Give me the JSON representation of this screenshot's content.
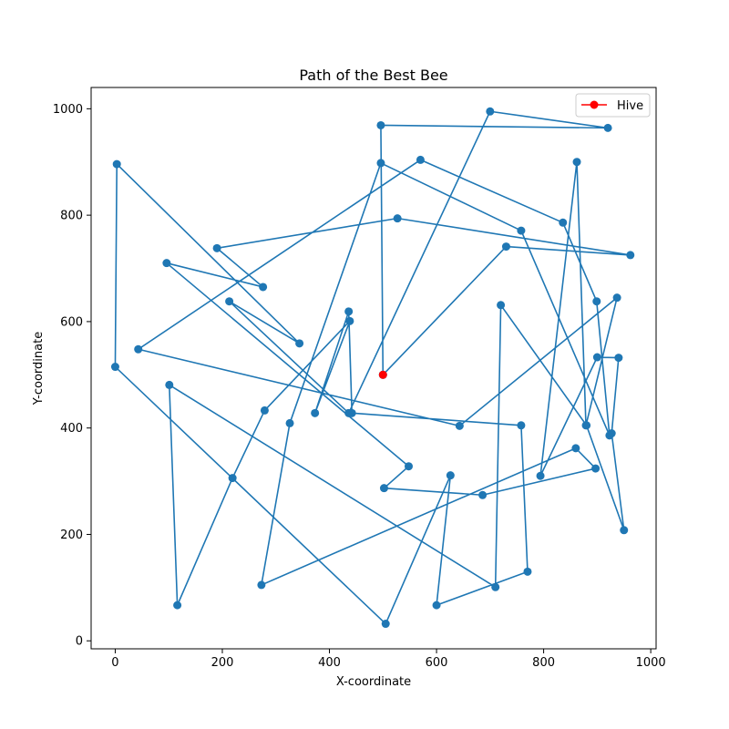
{
  "chart_data": {
    "type": "line",
    "title": "Path of the Best Bee",
    "xlabel": "X-coordinate",
    "ylabel": "Y-coordinate",
    "xlim": [
      -45,
      1010
    ],
    "ylim": [
      -15,
      1040
    ],
    "xticks": [
      0,
      200,
      400,
      600,
      800,
      1000
    ],
    "yticks": [
      0,
      200,
      400,
      600,
      800,
      1000
    ],
    "grid": false,
    "legend_position": "top-right",
    "legend": [
      {
        "label": "Hive",
        "color": "#ff0000",
        "marker": "circle"
      }
    ],
    "series": [
      {
        "color": "#1f77b4",
        "x": [
          500,
          730,
          962,
          527,
          190,
          276,
          96,
          548,
          502,
          686,
          897,
          860,
          273,
          326,
          496,
          758,
          923,
          899,
          836,
          570,
          43,
          643,
          937,
          879,
          862,
          794,
          900,
          940,
          927,
          950,
          880,
          720,
          710,
          101,
          116,
          219,
          279,
          438,
          373,
          436,
          442,
          758,
          770,
          600,
          626,
          505,
          0,
          3,
          344,
          213,
          436,
          700,
          920,
          496,
          500
        ],
        "y": [
          500,
          741,
          725,
          794,
          738,
          665,
          710,
          328,
          287,
          274,
          324,
          362,
          105,
          409,
          898,
          771,
          386,
          638,
          786,
          904,
          548,
          404,
          645,
          405,
          900,
          310,
          533,
          532,
          390,
          208,
          405,
          631,
          101,
          481,
          67,
          306,
          433,
          601,
          428,
          619,
          428,
          405,
          130,
          67,
          311,
          32,
          515,
          896,
          559,
          638,
          428,
          995,
          964,
          969,
          500
        ]
      },
      {
        "name": "Hive",
        "color": "#ff0000",
        "x": [
          500
        ],
        "y": [
          500
        ]
      }
    ]
  }
}
